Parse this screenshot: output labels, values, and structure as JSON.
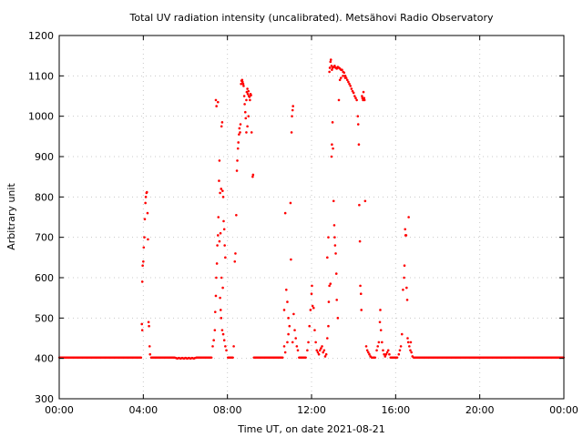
{
  "chart_data": {
    "type": "scatter",
    "title": "Total UV radiation intensity (uncalibrated). Metsähovi Radio Observatory",
    "xlabel": "Time UT, on date 2021-08-21",
    "ylabel": "Arbitrary unit",
    "xlim": [
      0,
      24
    ],
    "ylim": [
      300,
      1200
    ],
    "x_ticks": [
      0,
      4,
      8,
      12,
      16,
      20,
      24
    ],
    "x_tick_labels": [
      "00:00",
      "04:00",
      "08:00",
      "12:00",
      "16:00",
      "20:00",
      "00:00"
    ],
    "y_ticks": [
      300,
      400,
      500,
      600,
      700,
      800,
      900,
      1000,
      1100,
      1200
    ],
    "y_tick_labels": [
      "300",
      "400",
      "500",
      "600",
      "700",
      "800",
      "900",
      "1000",
      "1100",
      "1200"
    ],
    "grid": true,
    "colors": {
      "points": "#ff0000",
      "axes": "#000000",
      "grid": "#c8c8c8"
    },
    "baseline_value": 402,
    "series": [
      {
        "values_note": "",
        "points": [
          [
            3.95,
            590
          ],
          [
            3.97,
            630
          ],
          [
            4.0,
            640
          ],
          [
            4.02,
            675
          ],
          [
            4.05,
            700
          ],
          [
            4.07,
            745
          ],
          [
            4.1,
            785
          ],
          [
            4.12,
            800
          ],
          [
            4.15,
            810
          ],
          [
            4.17,
            812
          ],
          [
            4.2,
            760
          ],
          [
            4.22,
            695
          ],
          [
            4.25,
            490
          ],
          [
            4.27,
            480
          ],
          [
            4.3,
            430
          ],
          [
            4.32,
            410
          ],
          [
            3.93,
            485
          ],
          [
            3.95,
            470
          ],
          [
            7.3,
            430
          ],
          [
            7.35,
            445
          ],
          [
            7.4,
            470
          ],
          [
            7.42,
            515
          ],
          [
            7.45,
            555
          ],
          [
            7.47,
            600
          ],
          [
            7.5,
            635
          ],
          [
            7.52,
            680
          ],
          [
            7.55,
            705
          ],
          [
            7.57,
            750
          ],
          [
            7.6,
            840
          ],
          [
            7.62,
            890
          ],
          [
            7.45,
            1040
          ],
          [
            7.48,
            1025
          ],
          [
            7.55,
            1035
          ],
          [
            7.65,
            810
          ],
          [
            7.7,
            820
          ],
          [
            7.72,
            975
          ],
          [
            7.75,
            985
          ],
          [
            7.77,
            815
          ],
          [
            7.8,
            800
          ],
          [
            7.82,
            740
          ],
          [
            7.85,
            720
          ],
          [
            7.87,
            680
          ],
          [
            7.9,
            650
          ],
          [
            7.65,
            550
          ],
          [
            7.68,
            520
          ],
          [
            7.7,
            500
          ],
          [
            7.75,
            470
          ],
          [
            7.8,
            460
          ],
          [
            7.85,
            445
          ],
          [
            7.9,
            430
          ],
          [
            7.95,
            420
          ],
          [
            7.62,
            690
          ],
          [
            7.67,
            710
          ],
          [
            7.72,
            600
          ],
          [
            7.78,
            575
          ],
          [
            8.3,
            430
          ],
          [
            8.35,
            640
          ],
          [
            8.38,
            660
          ],
          [
            8.42,
            755
          ],
          [
            8.45,
            865
          ],
          [
            8.47,
            890
          ],
          [
            8.5,
            920
          ],
          [
            8.52,
            935
          ],
          [
            8.55,
            955
          ],
          [
            8.57,
            970
          ],
          [
            8.6,
            960
          ],
          [
            8.62,
            980
          ],
          [
            8.65,
            1080
          ],
          [
            8.67,
            1088
          ],
          [
            8.7,
            1090
          ],
          [
            8.72,
            1085
          ],
          [
            8.75,
            1080
          ],
          [
            8.77,
            1075
          ],
          [
            8.8,
            1050
          ],
          [
            8.82,
            1030
          ],
          [
            8.85,
            1010
          ],
          [
            8.87,
            995
          ],
          [
            8.9,
            1040
          ],
          [
            8.92,
            1060
          ],
          [
            8.95,
            1068
          ],
          [
            8.97,
            1055
          ],
          [
            9.0,
            1062
          ],
          [
            9.02,
            1050
          ],
          [
            9.05,
            1048
          ],
          [
            9.07,
            1040
          ],
          [
            9.1,
            1055
          ],
          [
            9.12,
            1052
          ],
          [
            9.15,
            960
          ],
          [
            9.2,
            850
          ],
          [
            9.22,
            855
          ],
          [
            8.9,
            960
          ],
          [
            8.95,
            975
          ],
          [
            9.0,
            1000
          ],
          [
            10.7,
            520
          ],
          [
            10.75,
            760
          ],
          [
            10.8,
            570
          ],
          [
            10.85,
            540
          ],
          [
            10.9,
            500
          ],
          [
            10.95,
            480
          ],
          [
            11.0,
            785
          ],
          [
            11.02,
            645
          ],
          [
            11.05,
            960
          ],
          [
            11.07,
            1000
          ],
          [
            11.1,
            1015
          ],
          [
            11.12,
            1025
          ],
          [
            11.15,
            510
          ],
          [
            11.2,
            470
          ],
          [
            11.25,
            450
          ],
          [
            11.3,
            430
          ],
          [
            11.35,
            420
          ],
          [
            10.7,
            430
          ],
          [
            10.75,
            415
          ],
          [
            10.85,
            440
          ],
          [
            10.9,
            460
          ],
          [
            11.1,
            440
          ],
          [
            11.8,
            420
          ],
          [
            11.85,
            440
          ],
          [
            11.9,
            480
          ],
          [
            11.95,
            520
          ],
          [
            12.0,
            560
          ],
          [
            12.02,
            580
          ],
          [
            12.05,
            530
          ],
          [
            12.1,
            525
          ],
          [
            12.15,
            470
          ],
          [
            12.2,
            440
          ],
          [
            12.25,
            420
          ],
          [
            12.3,
            415
          ],
          [
            12.35,
            410
          ],
          [
            12.4,
            420
          ],
          [
            12.45,
            425
          ],
          [
            12.5,
            430
          ],
          [
            12.55,
            415
          ],
          [
            12.6,
            420
          ],
          [
            12.65,
            405
          ],
          [
            12.7,
            410
          ],
          [
            12.75,
            450
          ],
          [
            12.8,
            480
          ],
          [
            12.82,
            540
          ],
          [
            12.85,
            580
          ],
          [
            12.9,
            585
          ],
          [
            12.95,
            900
          ],
          [
            12.97,
            930
          ],
          [
            12.75,
            650
          ],
          [
            12.8,
            700
          ],
          [
            12.85,
            1110
          ],
          [
            12.87,
            1120
          ],
          [
            12.9,
            1135
          ],
          [
            12.92,
            1140
          ],
          [
            12.95,
            1125
          ],
          [
            12.97,
            1115
          ],
          [
            13.0,
            1120
          ],
          [
            13.05,
            1122
          ],
          [
            13.1,
            1125
          ],
          [
            13.15,
            1120
          ],
          [
            13.2,
            1118
          ],
          [
            13.25,
            1122
          ],
          [
            13.3,
            1120
          ],
          [
            13.35,
            1118
          ],
          [
            13.4,
            1115
          ],
          [
            13.45,
            1115
          ],
          [
            13.5,
            1110
          ],
          [
            13.55,
            1108
          ],
          [
            13.6,
            1100
          ],
          [
            13.65,
            1095
          ],
          [
            13.7,
            1090
          ],
          [
            13.75,
            1085
          ],
          [
            13.8,
            1080
          ],
          [
            13.85,
            1075
          ],
          [
            13.9,
            1068
          ],
          [
            13.95,
            1062
          ],
          [
            14.0,
            1058
          ],
          [
            14.05,
            1050
          ],
          [
            14.1,
            1045
          ],
          [
            14.15,
            1040
          ],
          [
            13.0,
            985
          ],
          [
            13.02,
            920
          ],
          [
            13.05,
            790
          ],
          [
            13.08,
            730
          ],
          [
            13.1,
            700
          ],
          [
            13.12,
            680
          ],
          [
            13.15,
            660
          ],
          [
            13.18,
            610
          ],
          [
            13.2,
            545
          ],
          [
            13.25,
            500
          ],
          [
            13.3,
            1040
          ],
          [
            13.35,
            1090
          ],
          [
            13.4,
            1095
          ],
          [
            13.5,
            1100
          ],
          [
            13.6,
            1095
          ],
          [
            14.2,
            1000
          ],
          [
            14.22,
            980
          ],
          [
            14.25,
            930
          ],
          [
            14.27,
            780
          ],
          [
            14.3,
            690
          ],
          [
            14.32,
            580
          ],
          [
            14.35,
            560
          ],
          [
            14.37,
            520
          ],
          [
            14.4,
            1050
          ],
          [
            14.42,
            1045
          ],
          [
            14.45,
            1040
          ],
          [
            14.47,
            1060
          ],
          [
            14.5,
            1045
          ],
          [
            14.52,
            1040
          ],
          [
            14.55,
            790
          ],
          [
            14.6,
            430
          ],
          [
            14.65,
            420
          ],
          [
            14.7,
            415
          ],
          [
            14.75,
            410
          ],
          [
            14.8,
            405
          ],
          [
            15.1,
            420
          ],
          [
            15.15,
            430
          ],
          [
            15.2,
            440
          ],
          [
            15.25,
            490
          ],
          [
            15.27,
            520
          ],
          [
            15.3,
            470
          ],
          [
            15.35,
            440
          ],
          [
            15.4,
            420
          ],
          [
            15.45,
            410
          ],
          [
            15.5,
            405
          ],
          [
            15.55,
            410
          ],
          [
            15.6,
            415
          ],
          [
            15.65,
            420
          ],
          [
            15.7,
            410
          ],
          [
            16.15,
            410
          ],
          [
            16.2,
            420
          ],
          [
            16.25,
            430
          ],
          [
            16.3,
            460
          ],
          [
            16.35,
            570
          ],
          [
            16.4,
            600
          ],
          [
            16.42,
            630
          ],
          [
            16.45,
            720
          ],
          [
            16.47,
            705
          ],
          [
            16.5,
            705
          ],
          [
            16.52,
            575
          ],
          [
            16.55,
            545
          ],
          [
            16.57,
            450
          ],
          [
            16.6,
            440
          ],
          [
            16.62,
            750
          ],
          [
            16.65,
            430
          ],
          [
            16.7,
            420
          ],
          [
            16.72,
            440
          ],
          [
            16.75,
            415
          ],
          [
            16.8,
            405
          ]
        ]
      }
    ]
  }
}
